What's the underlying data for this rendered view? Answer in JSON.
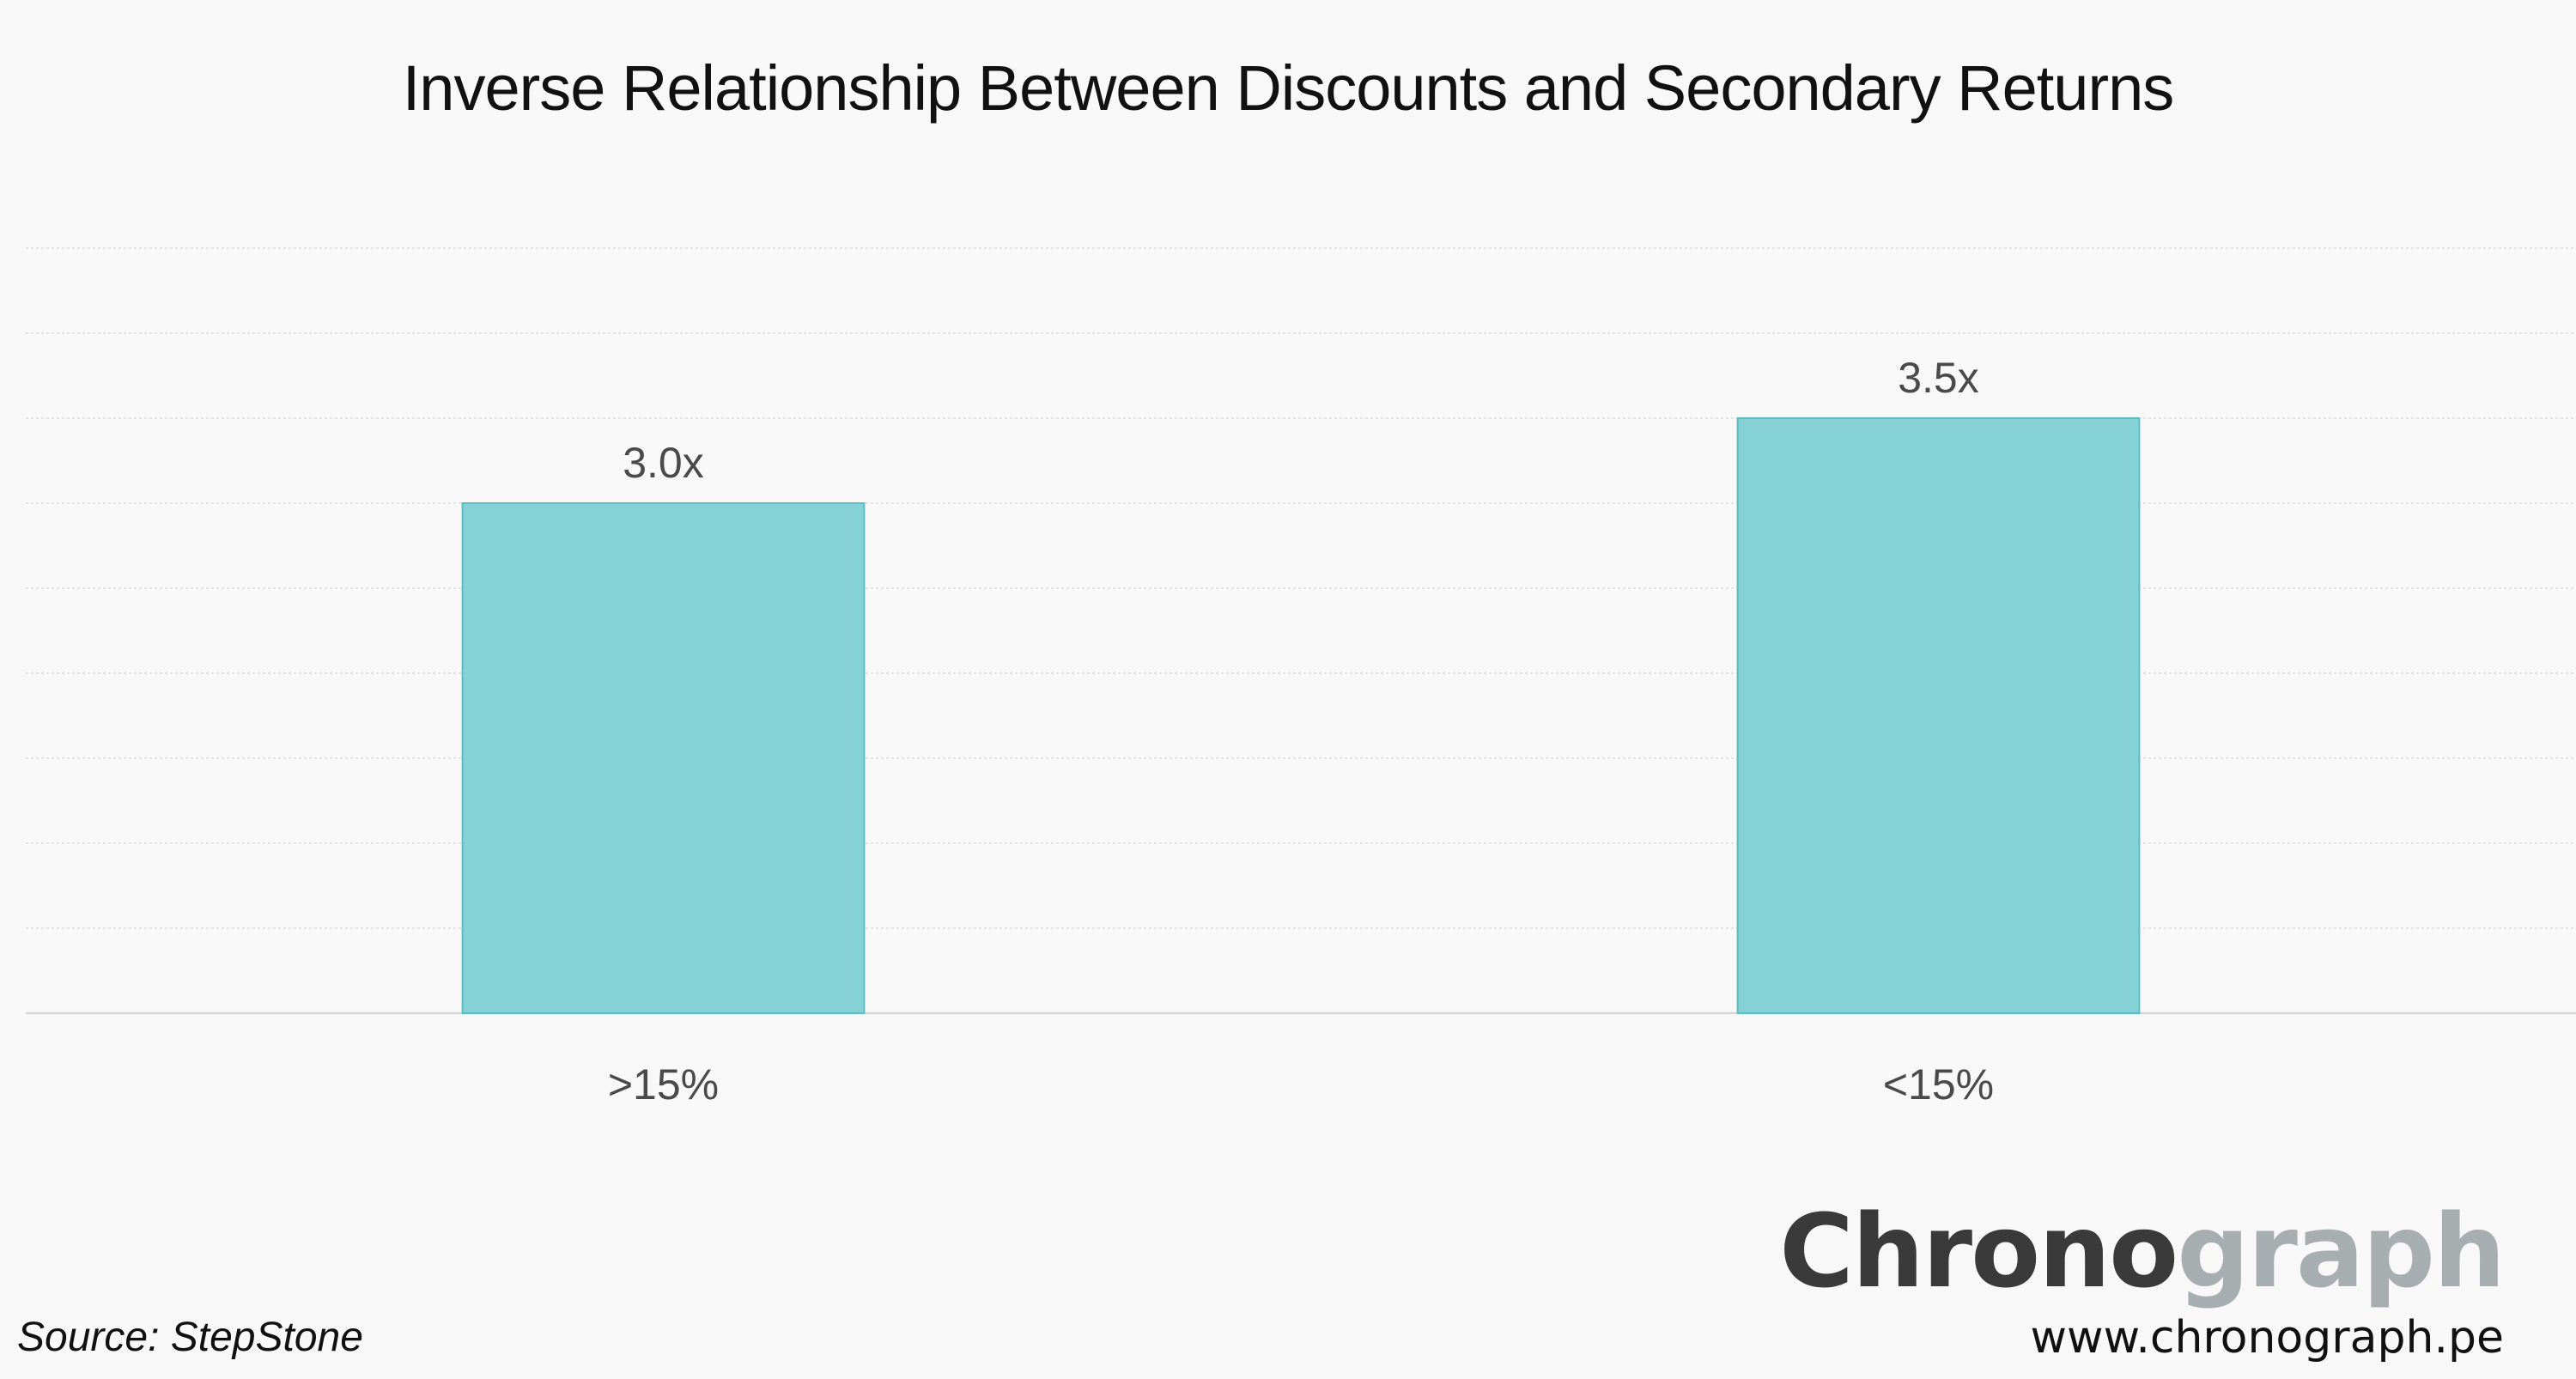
{
  "chart_data": {
    "type": "bar",
    "title": "Inverse Relationship Between Discounts and Secondary Returns",
    "categories": [
      ">15%",
      "<15%"
    ],
    "values": [
      3.0,
      3.5
    ],
    "data_labels": [
      "3.0x",
      "3.5x"
    ],
    "ylim": [
      0,
      4.5
    ],
    "grid": true,
    "bar_color": "#84d2d5",
    "bar_edge_color": "#5cbcc0"
  },
  "footer": {
    "source": "Source: StepStone",
    "logo_part1": "Chrono",
    "logo_part2": "graph",
    "website": "www.chronograph.pe"
  }
}
